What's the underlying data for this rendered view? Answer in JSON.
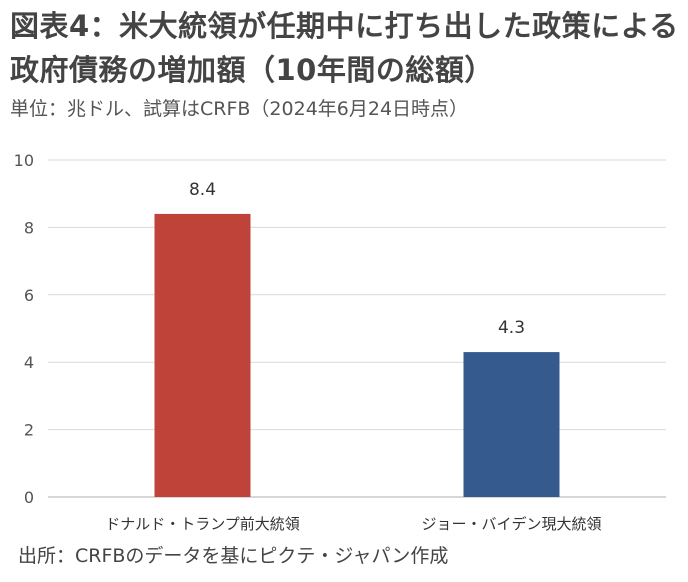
{
  "header": {
    "title": "図表4：米大統領が任期中に打ち出した政策による政府債務の増加額（10年間の総額）",
    "subtitle": "単位：兆ドル、試算はCRFB（2024年6月24日時点）"
  },
  "footer": {
    "source": "出所：CRFBのデータを基にピクテ・ジャパン作成"
  },
  "chart_data": {
    "type": "bar",
    "categories": [
      "ドナルド・トランプ前大統領",
      "ジョー・バイデン現大統領"
    ],
    "values": [
      8.4,
      4.3
    ],
    "data_labels": [
      "8.4",
      "4.3"
    ],
    "colors": [
      "#c0433a",
      "#355a8e"
    ],
    "ylim": [
      0,
      10
    ],
    "yticks": [
      "0",
      "2",
      "4",
      "6",
      "8",
      "10"
    ],
    "grid": true,
    "legend": "none"
  }
}
